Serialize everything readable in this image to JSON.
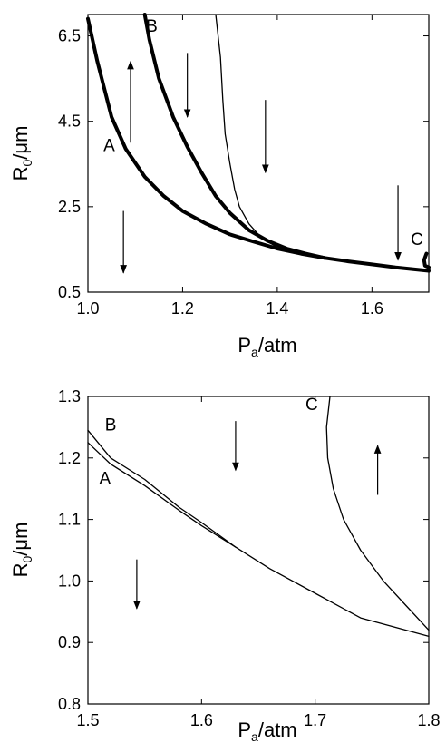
{
  "chart_data": [
    {
      "type": "line",
      "panel": "top",
      "xlabel": {
        "main": "P",
        "sub": "a",
        "rest": "/atm"
      },
      "ylabel": {
        "main": "R",
        "sub": "0",
        "rest": "/μm"
      },
      "xlim": [
        1.0,
        1.72
      ],
      "ylim": [
        0.5,
        7.0
      ],
      "xticks": [
        {
          "v": 1.0,
          "label": "1.0"
        },
        {
          "v": 1.2,
          "label": "1.2"
        },
        {
          "v": 1.4,
          "label": "1.4"
        },
        {
          "v": 1.6,
          "label": "1.6"
        }
      ],
      "yticks": [
        {
          "v": 0.5,
          "label": "0.5"
        },
        {
          "v": 2.5,
          "label": "2.5"
        },
        {
          "v": 4.5,
          "label": "4.5"
        },
        {
          "v": 6.5,
          "label": "6.5"
        }
      ],
      "series": [
        {
          "name": "A",
          "style": "thick",
          "x": [
            1.0,
            1.02,
            1.05,
            1.08,
            1.12,
            1.16,
            1.2,
            1.25,
            1.3,
            1.35,
            1.4,
            1.45,
            1.5,
            1.55,
            1.6,
            1.65,
            1.72
          ],
          "y": [
            6.9,
            5.9,
            4.6,
            3.85,
            3.2,
            2.75,
            2.4,
            2.1,
            1.85,
            1.68,
            1.52,
            1.4,
            1.3,
            1.22,
            1.15,
            1.08,
            1.0
          ]
        },
        {
          "name": "B",
          "style": "thick",
          "x": [
            1.12,
            1.13,
            1.15,
            1.18,
            1.21,
            1.24,
            1.27,
            1.3,
            1.34,
            1.38,
            1.42,
            1.46,
            1.5
          ],
          "y": [
            7.0,
            6.4,
            5.5,
            4.6,
            3.9,
            3.3,
            2.75,
            2.35,
            1.95,
            1.7,
            1.52,
            1.4,
            1.3
          ]
        },
        {
          "name": "",
          "style": "thin",
          "x": [
            1.27,
            1.28,
            1.285,
            1.29,
            1.3,
            1.31,
            1.32,
            1.34,
            1.36,
            1.38,
            1.4
          ],
          "y": [
            7.0,
            6.0,
            5.0,
            4.2,
            3.5,
            2.9,
            2.5,
            2.1,
            1.85,
            1.68,
            1.55
          ]
        },
        {
          "name": "C",
          "style": "thick",
          "x": [
            1.715,
            1.71,
            1.712,
            1.72
          ],
          "y": [
            1.4,
            1.25,
            1.12,
            1.08
          ]
        }
      ],
      "labels": [
        {
          "text": "A",
          "x": 1.045,
          "y": 3.8
        },
        {
          "text": "B",
          "x": 1.135,
          "y": 6.6
        },
        {
          "text": "C",
          "x": 1.695,
          "y": 1.6
        }
      ],
      "arrows": [
        {
          "x": 1.09,
          "y1": 4.0,
          "y2": 5.9
        },
        {
          "x": 1.21,
          "y1": 6.1,
          "y2": 4.6
        },
        {
          "x": 1.375,
          "y1": 5.0,
          "y2": 3.3
        },
        {
          "x": 1.075,
          "y1": 2.4,
          "y2": 0.95
        },
        {
          "x": 1.655,
          "y1": 3.0,
          "y2": 1.25
        }
      ]
    },
    {
      "type": "line",
      "panel": "bottom",
      "xlabel": {
        "main": "P",
        "sub": "a",
        "rest": "/atm"
      },
      "ylabel": {
        "main": "R",
        "sub": "0",
        "rest": "/μm"
      },
      "xlim": [
        1.5,
        1.8
      ],
      "ylim": [
        0.8,
        1.3
      ],
      "xticks": [
        {
          "v": 1.5,
          "label": "1.5"
        },
        {
          "v": 1.6,
          "label": "1.6"
        },
        {
          "v": 1.7,
          "label": "1.7"
        },
        {
          "v": 1.8,
          "label": "1.8"
        }
      ],
      "yticks": [
        {
          "v": 0.8,
          "label": "0.8"
        },
        {
          "v": 0.9,
          "label": "0.9"
        },
        {
          "v": 1.0,
          "label": "1.0"
        },
        {
          "v": 1.1,
          "label": "1.1"
        },
        {
          "v": 1.2,
          "label": "1.2"
        },
        {
          "v": 1.3,
          "label": "1.3"
        }
      ],
      "series": [
        {
          "name": "A",
          "style": "thin",
          "x": [
            1.5,
            1.52,
            1.55,
            1.58,
            1.6,
            1.63,
            1.66,
            1.7,
            1.74,
            1.8
          ],
          "y": [
            1.225,
            1.19,
            1.155,
            1.115,
            1.09,
            1.055,
            1.02,
            0.98,
            0.94,
            0.91
          ]
        },
        {
          "name": "B",
          "style": "thin",
          "x": [
            1.5,
            1.52,
            1.55,
            1.58,
            1.6,
            1.63
          ],
          "y": [
            1.245,
            1.2,
            1.165,
            1.12,
            1.095,
            1.055
          ]
        },
        {
          "name": "C",
          "style": "thin",
          "x": [
            1.713,
            1.71,
            1.711,
            1.716,
            1.725,
            1.74,
            1.76,
            1.78,
            1.8
          ],
          "y": [
            1.3,
            1.25,
            1.2,
            1.15,
            1.1,
            1.05,
            1.0,
            0.96,
            0.92
          ]
        }
      ],
      "labels": [
        {
          "text": "B",
          "x": 1.52,
          "y": 1.245
        },
        {
          "text": "A",
          "x": 1.515,
          "y": 1.158
        },
        {
          "text": "C",
          "x": 1.697,
          "y": 1.278
        }
      ],
      "arrows": [
        {
          "x": 1.63,
          "y1": 1.26,
          "y2": 1.18
        },
        {
          "x": 1.543,
          "y1": 1.035,
          "y2": 0.955
        },
        {
          "x": 1.755,
          "y1": 1.14,
          "y2": 1.22
        }
      ]
    }
  ]
}
